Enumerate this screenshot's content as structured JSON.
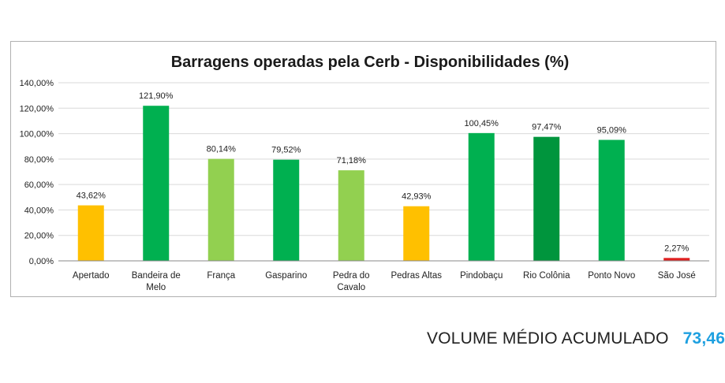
{
  "chart_data": {
    "type": "bar",
    "title": "Barragens operadas pela Cerb - Disponibilidades (%)",
    "xlabel": "",
    "ylabel": "",
    "ylim": [
      0,
      140
    ],
    "yticks": [
      "0,00%",
      "20,00%",
      "40,00%",
      "60,00%",
      "80,00%",
      "100,00%",
      "120,00%",
      "140,00%"
    ],
    "grid": true,
    "categories": [
      [
        "Apertado"
      ],
      [
        "Bandeira de",
        "Melo"
      ],
      [
        "França"
      ],
      [
        "Gasparino"
      ],
      [
        "Pedra do",
        "Cavalo"
      ],
      [
        "Pedras Altas"
      ],
      [
        "Pindobaçu"
      ],
      [
        "Rio Colônia"
      ],
      [
        "Ponto Novo"
      ],
      [
        "São José"
      ]
    ],
    "values": [
      43.62,
      121.9,
      80.14,
      79.52,
      71.18,
      42.93,
      100.45,
      97.47,
      95.09,
      2.27
    ],
    "data_labels": [
      "43,62%",
      "121,90%",
      "80,14%",
      "79,52%",
      "71,18%",
      "42,93%",
      "100,45%",
      "97,47%",
      "95,09%",
      "2,27%"
    ],
    "colors": [
      "#ffc000",
      "#00b050",
      "#92d050",
      "#00b050",
      "#92d050",
      "#ffc000",
      "#00b050",
      "#00953d",
      "#00b050",
      "#e02020"
    ]
  },
  "footer": {
    "label": "VOLUME MÉDIO ACUMULADO",
    "value": "73,46"
  }
}
